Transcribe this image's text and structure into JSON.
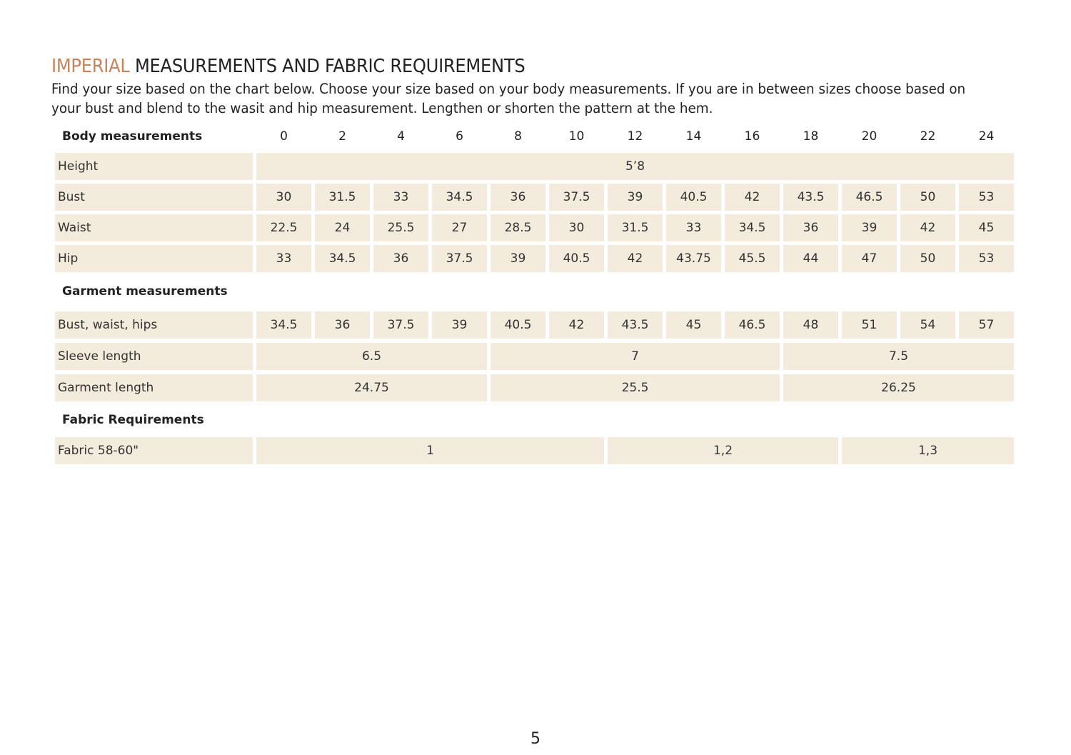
{
  "title": {
    "accent": "IMPERIAL",
    "rest": " MEASUREMENTS AND FABRIC REQUIREMENTS"
  },
  "intro": "Find your size based on the chart below. Choose your size based on your body measurements. If you are in between sizes choose based on your bust and blend to the wasit and hip measurement. Lengthen or shorten the pattern at the hem.",
  "colors": {
    "accent": "#c9835a",
    "cell_background": "#f3ebdc"
  },
  "table": {
    "body_heading": "Body measurements",
    "sizes": [
      "0",
      "2",
      "4",
      "6",
      "8",
      "10",
      "12",
      "14",
      "16",
      "18",
      "20",
      "22",
      "24"
    ],
    "body_rows": [
      {
        "label": "Height",
        "cells": [
          {
            "value": "5’8",
            "span": 13
          }
        ]
      },
      {
        "label": "Bust",
        "cells": [
          {
            "value": "30"
          },
          {
            "value": "31.5"
          },
          {
            "value": "33"
          },
          {
            "value": "34.5"
          },
          {
            "value": "36"
          },
          {
            "value": "37.5"
          },
          {
            "value": "39"
          },
          {
            "value": "40.5"
          },
          {
            "value": "42"
          },
          {
            "value": "43.5"
          },
          {
            "value": "46.5"
          },
          {
            "value": "50"
          },
          {
            "value": "53"
          }
        ]
      },
      {
        "label": "Waist",
        "cells": [
          {
            "value": "22.5"
          },
          {
            "value": "24"
          },
          {
            "value": "25.5"
          },
          {
            "value": "27"
          },
          {
            "value": "28.5"
          },
          {
            "value": "30"
          },
          {
            "value": "31.5"
          },
          {
            "value": "33"
          },
          {
            "value": "34.5"
          },
          {
            "value": "36"
          },
          {
            "value": "39"
          },
          {
            "value": "42"
          },
          {
            "value": "45"
          }
        ]
      },
      {
        "label": "Hip",
        "cells": [
          {
            "value": "33"
          },
          {
            "value": "34.5"
          },
          {
            "value": "36"
          },
          {
            "value": "37.5"
          },
          {
            "value": "39"
          },
          {
            "value": "40.5"
          },
          {
            "value": "42"
          },
          {
            "value": "43.75"
          },
          {
            "value": "45.5"
          },
          {
            "value": "44"
          },
          {
            "value": "47"
          },
          {
            "value": "50"
          },
          {
            "value": "53"
          }
        ]
      }
    ],
    "garment_heading": "Garment measurements",
    "garment_rows": [
      {
        "label": "Bust, waist, hips",
        "cells": [
          {
            "value": "34.5"
          },
          {
            "value": "36"
          },
          {
            "value": "37.5"
          },
          {
            "value": "39"
          },
          {
            "value": "40.5"
          },
          {
            "value": "42"
          },
          {
            "value": "43.5"
          },
          {
            "value": "45"
          },
          {
            "value": "46.5"
          },
          {
            "value": "48"
          },
          {
            "value": "51"
          },
          {
            "value": "54"
          },
          {
            "value": "57"
          }
        ]
      },
      {
        "label": "Sleeve length",
        "cells": [
          {
            "value": "6.5",
            "span": 4
          },
          {
            "value": "7",
            "span": 5
          },
          {
            "value": "7.5",
            "span": 4
          }
        ]
      },
      {
        "label": "Garment length",
        "cells": [
          {
            "value": "24.75",
            "span": 4
          },
          {
            "value": "25.5",
            "span": 5
          },
          {
            "value": "26.25",
            "span": 4
          }
        ]
      }
    ],
    "fabric_heading": "Fabric Requirements",
    "fabric_rows": [
      {
        "label": "Fabric  58-60\"",
        "cells": [
          {
            "value": "1",
            "span": 6
          },
          {
            "value": "1,2",
            "span": 4
          },
          {
            "value": "1,3",
            "span": 3
          }
        ]
      }
    ]
  },
  "page_number": "5"
}
